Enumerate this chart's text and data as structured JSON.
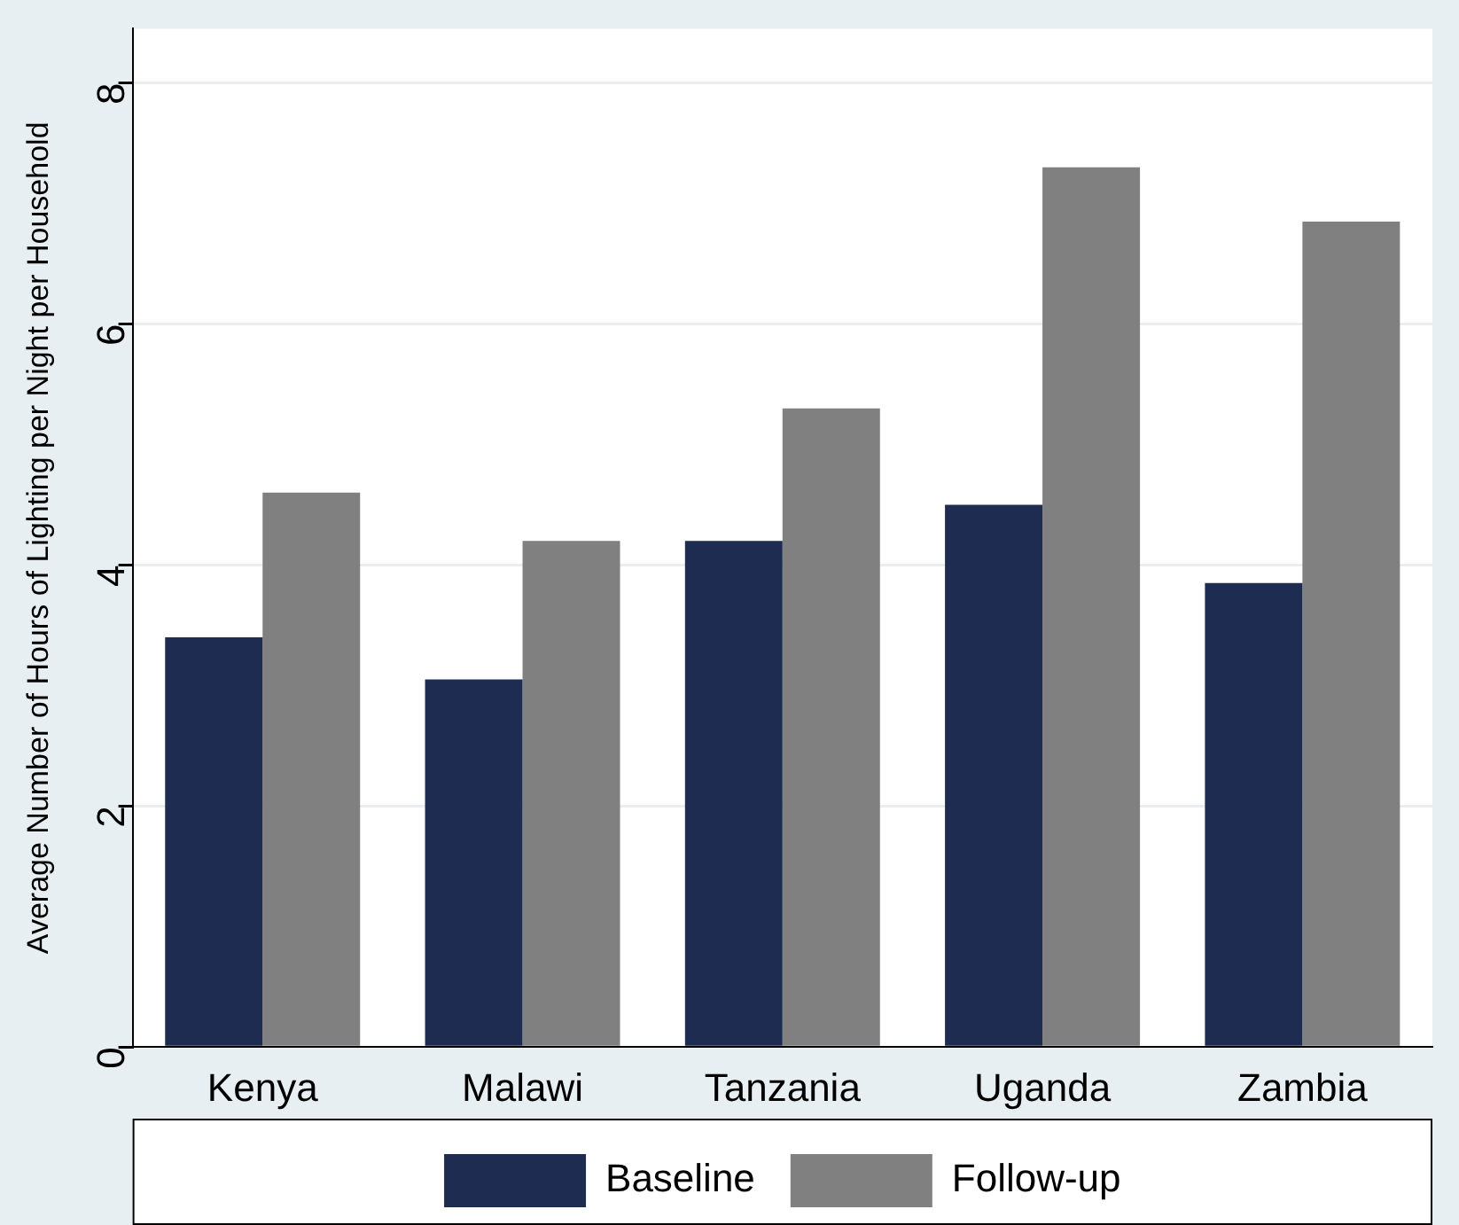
{
  "chart_data": {
    "type": "bar",
    "ylabel": "Average Number of Hours of Lighting per Night per Household",
    "categories": [
      "Kenya",
      "Malawi",
      "Tanzania",
      "Uganda",
      "Zambia"
    ],
    "series": [
      {
        "name": "Baseline",
        "color": "#1e2c52",
        "values": [
          3.4,
          3.05,
          4.2,
          4.5,
          3.85
        ]
      },
      {
        "name": "Follow-up",
        "color": "#808080",
        "values": [
          4.6,
          4.2,
          5.3,
          7.3,
          6.85
        ]
      }
    ],
    "ylim": [
      0,
      8.45
    ],
    "yticks": [
      0,
      2,
      4,
      6,
      8
    ],
    "grid": "y",
    "legend": "bottom"
  }
}
